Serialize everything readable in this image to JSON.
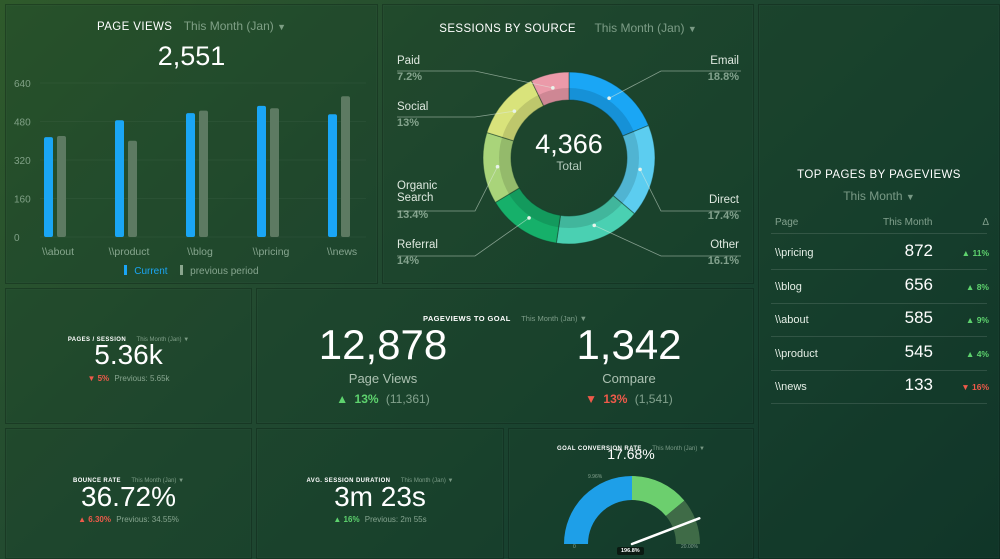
{
  "page_views": {
    "title": "PAGE VIEWS",
    "period": "This Month (Jan)",
    "total": "2,551",
    "legend_current": "Current",
    "legend_previous": "previous period",
    "colors": {
      "current": "#1aa6f5",
      "previous": "#5d7a62"
    }
  },
  "chart_data": {
    "type": "bar",
    "categories": [
      "\\\\about",
      "\\\\product",
      "\\\\blog",
      "\\\\pricing",
      "\\\\news"
    ],
    "series": [
      {
        "name": "Current",
        "values": [
          415,
          485,
          515,
          545,
          510
        ]
      },
      {
        "name": "previous period",
        "values": [
          420,
          400,
          525,
          535,
          585
        ]
      }
    ],
    "y_ticks": [
      "0",
      "160",
      "320",
      "480",
      "640"
    ],
    "ylim": [
      0,
      640
    ],
    "legend": "bottom"
  },
  "sessions": {
    "title": "SESSIONS BY SOURCE",
    "period": "This Month (Jan)",
    "total": "4,366",
    "total_label": "Total",
    "slices": [
      {
        "name": "Email",
        "pct": "18.8%",
        "value": 18.8,
        "color": "#1aa6f5"
      },
      {
        "name": "Direct",
        "pct": "17.4%",
        "value": 17.4,
        "color": "#5ccdf0"
      },
      {
        "name": "Other",
        "pct": "16.1%",
        "value": 16.1,
        "color": "#4ad0b2"
      },
      {
        "name": "Referral",
        "pct": "14%",
        "value": 14.0,
        "color": "#16b06a"
      },
      {
        "name": "Organic Search",
        "name_l1": "Organic",
        "name_l2": "Search",
        "pct": "13.4%",
        "value": 13.4,
        "color": "#a9d47a"
      },
      {
        "name": "Social",
        "pct": "13%",
        "value": 13.0,
        "color": "#d9e37b"
      },
      {
        "name": "Paid",
        "pct": "7.2%",
        "value": 7.2,
        "color": "#eb9aa9"
      }
    ]
  },
  "top_pages": {
    "title": "TOP PAGES BY PAGEVIEWS",
    "period": "This Month",
    "col_page": "Page",
    "col_month": "This Month",
    "col_delta": "Δ",
    "rows": [
      {
        "page": "\\\\pricing",
        "value": "872",
        "delta": "11%",
        "dir": "up"
      },
      {
        "page": "\\\\blog",
        "value": "656",
        "delta": "8%",
        "dir": "up"
      },
      {
        "page": "\\\\about",
        "value": "585",
        "delta": "9%",
        "dir": "up"
      },
      {
        "page": "\\\\product",
        "value": "545",
        "delta": "4%",
        "dir": "up"
      },
      {
        "page": "\\\\news",
        "value": "133",
        "delta": "16%",
        "dir": "down"
      }
    ]
  },
  "pages_session": {
    "title": "PAGES / SESSION",
    "period": "This Month (Jan)",
    "value": "5.36k",
    "change": "5%",
    "previous": "Previous: 5.65k"
  },
  "pageviews_goal": {
    "title": "PAGEVIEWS TO GOAL",
    "period": "This Month (Jan)",
    "left_value": "12,878",
    "left_label": "Page Views",
    "left_change": "13%",
    "left_prev": "(11,361)",
    "right_value": "1,342",
    "right_label": "Compare",
    "right_change": "13%",
    "right_prev": "(1,541)"
  },
  "bounce_rate": {
    "title": "BOUNCE RATE",
    "period": "This Month (Jan)",
    "value": "36.72%",
    "change": "6.30%",
    "previous": "Previous: 34.55%"
  },
  "avg_session": {
    "title": "AVG. SESSION DURATION",
    "period": "This Month (Jan)",
    "value": "3m 23s",
    "change": "16%",
    "previous": "Previous: 2m 55s"
  },
  "goal_conversion": {
    "title": "GOAL CONVERSION RATE",
    "period": "This Month (Jan)",
    "value": "17.68%",
    "gauge_min": "0",
    "gauge_mark": "9.96%",
    "gauge_max": "20.00%",
    "needle_label": "196.8%",
    "fraction": 0.884
  }
}
